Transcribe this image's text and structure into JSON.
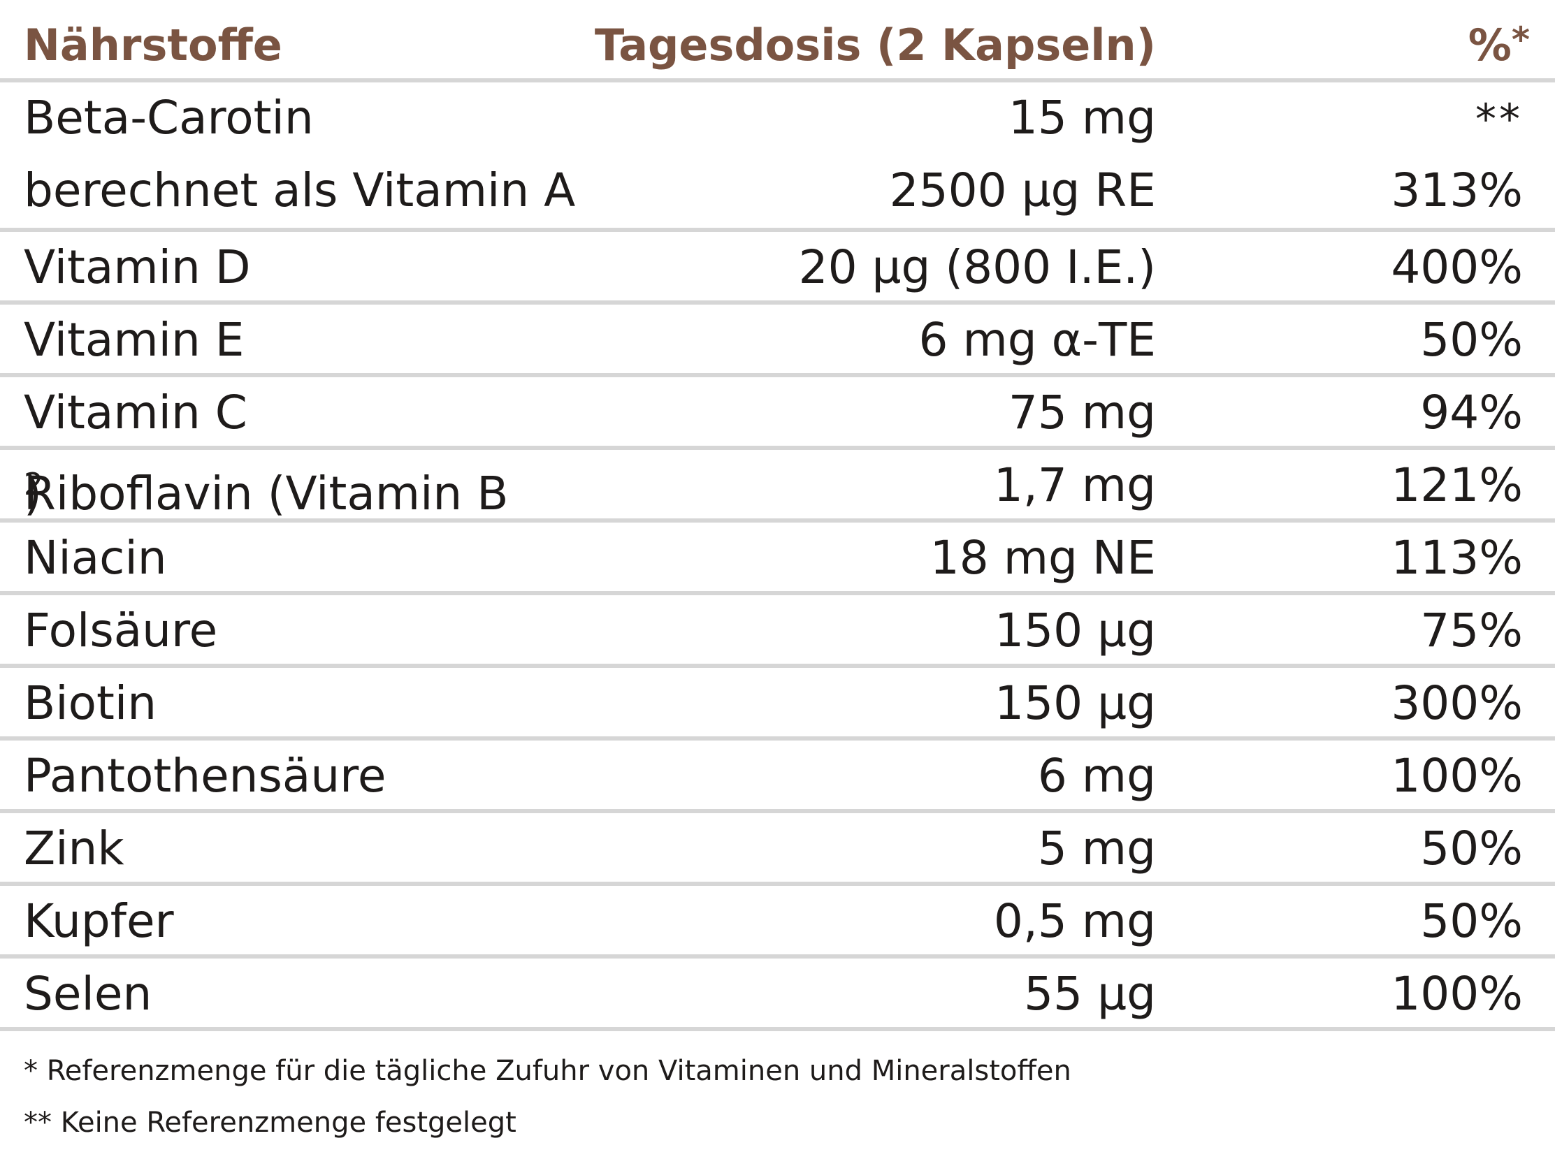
{
  "header": {
    "nutrients": "Nährstoffe",
    "daily_dose": "Tagesdosis (2 Kapseln)",
    "percent": "%",
    "percent_marker": "*"
  },
  "rows": [
    {
      "name": "Beta-Carotin",
      "dose": "15 mg",
      "percent": "**"
    },
    {
      "name": "berechnet als Vitamin A",
      "dose": "2500 µg RE",
      "percent": "313%"
    },
    {
      "name": "Vitamin D",
      "dose": "20 µg (800 I.E.)",
      "percent": "400%"
    },
    {
      "name": "Vitamin E",
      "dose": "6 mg α-TE",
      "percent": "50%"
    },
    {
      "name": "Vitamin C",
      "dose": "75 mg",
      "percent": "94%"
    },
    {
      "name": "Riboflavin (Vitamin B",
      "name_subscript": "2",
      "name_suffix": ")",
      "dose": "1,7 mg",
      "percent": "121%"
    },
    {
      "name": "Niacin",
      "dose": "18 mg NE",
      "percent": "113%"
    },
    {
      "name": "Folsäure",
      "dose": "150 µg",
      "percent": "75%"
    },
    {
      "name": "Biotin",
      "dose": "150 µg",
      "percent": "300%"
    },
    {
      "name": "Pantothensäure",
      "dose": "6 mg",
      "percent": "100%"
    },
    {
      "name": "Zink",
      "dose": "5 mg",
      "percent": "50%"
    },
    {
      "name": "Kupfer",
      "dose": "0,5 mg",
      "percent": "50%"
    },
    {
      "name": "Selen",
      "dose": "55 µg",
      "percent": "100%"
    }
  ],
  "footnotes": [
    "* Referenzmenge für die tägliche Zufuhr von Vitaminen und Mineralstoffen",
    "** Keine Referenzmenge festgelegt"
  ],
  "colors": {
    "header_text": "#7a5442",
    "body_text": "#1e1b1a",
    "divider": "#d6d6d6"
  }
}
